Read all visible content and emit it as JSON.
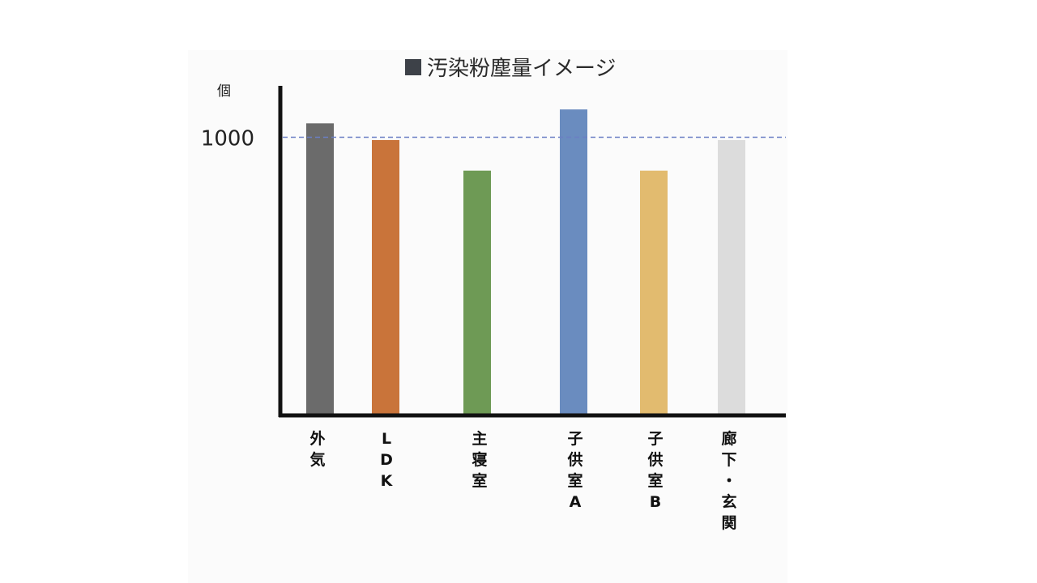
{
  "chart_data": {
    "type": "bar",
    "title": "汚染粉塵量イメージ",
    "legend_marker_color": "#3d4148",
    "ylabel": "個",
    "ylim": [
      0,
      1200
    ],
    "y_ticks": [
      1000
    ],
    "reference_line": {
      "value": 1000,
      "style": "dashed",
      "color": "#6b7fc4"
    },
    "grid": false,
    "categories": [
      "外気",
      "LDK",
      "主寝室",
      "子供室A",
      "子供室B",
      "廊下・玄関"
    ],
    "category_label_lines": [
      [
        "外",
        "気"
      ],
      [
        "L",
        "D",
        "K"
      ],
      [
        "主",
        "寝",
        "室"
      ],
      [
        "子",
        "供",
        "室",
        "A"
      ],
      [
        "子",
        "供",
        "室",
        "B"
      ],
      [
        "廊",
        "下",
        "・",
        "玄",
        "関"
      ]
    ],
    "values": [
      1050,
      990,
      880,
      1100,
      880,
      990
    ],
    "colors": [
      "#6b6b6b",
      "#c9743a",
      "#6e9a55",
      "#6a8cbf",
      "#e2bb6f",
      "#dcdcdc"
    ]
  }
}
